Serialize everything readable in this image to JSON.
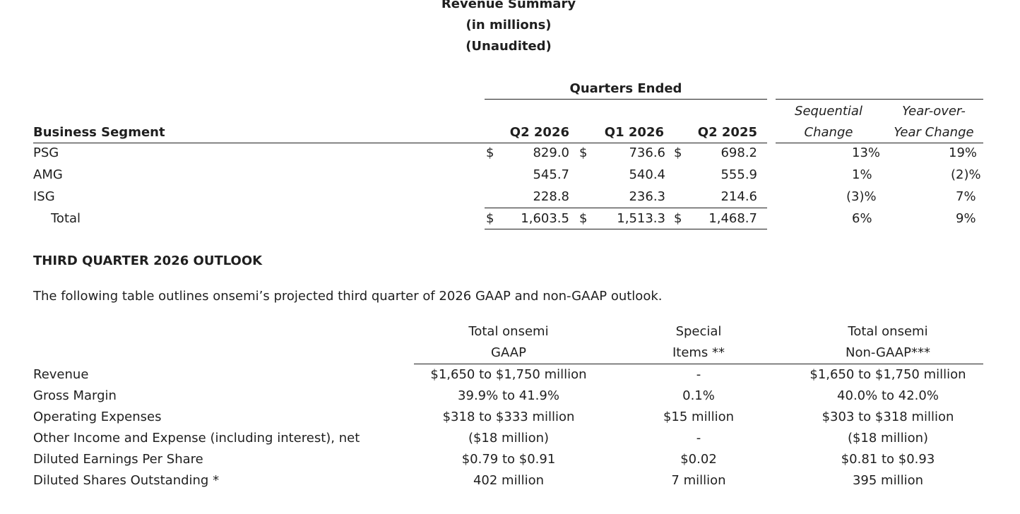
{
  "header": {
    "title": "Revenue Summary",
    "subtitle": "(in millions)",
    "audit": "(Unaudited)"
  },
  "revenue_table": {
    "group_header": "Quarters Ended",
    "segment_header": "Business Segment",
    "col_q2_2026": "Q2 2026",
    "col_q1_2026": "Q1 2026",
    "col_q2_2025": "Q2 2025",
    "seq_line1": "Sequential",
    "seq_line2": "Change",
    "yoy_line1": "Year-over-",
    "yoy_line2": "Year Change",
    "currency": "$",
    "rows": [
      {
        "segment": "PSG",
        "q2_2026": "829.0",
        "q1_2026": "736.6",
        "q2_2025": "698.2",
        "seq": "13%",
        "yoy": "19%"
      },
      {
        "segment": "AMG",
        "q2_2026": "545.7",
        "q1_2026": "540.4",
        "q2_2025": "555.9",
        "seq": "1%",
        "yoy": "(2)%"
      },
      {
        "segment": "ISG",
        "q2_2026": "228.8",
        "q1_2026": "236.3",
        "q2_2025": "214.6",
        "seq": "(3)%",
        "yoy": "7%"
      },
      {
        "segment": "Total",
        "q2_2026": "1,603.5",
        "q1_2026": "1,513.3",
        "q2_2025": "1,468.7",
        "seq": "6%",
        "yoy": "9%"
      }
    ]
  },
  "outlook": {
    "heading": "THIRD QUARTER 2026 OUTLOOK",
    "intro": "The following table outlines onsemi’s projected third quarter of 2026 GAAP and non-GAAP outlook.",
    "gaap_line1": "Total onsemi",
    "gaap_line2": "GAAP",
    "special_line1": "Special",
    "special_line2": "Items **",
    "nongaap_line1": "Total onsemi",
    "nongaap_line2": "Non-GAAP***",
    "rows": [
      {
        "label": "Revenue",
        "gaap": "$1,650 to $1,750 million",
        "special": "-",
        "nongaap": "$1,650 to $1,750 million"
      },
      {
        "label": "Gross Margin",
        "gaap": "39.9% to 41.9%",
        "special": "0.1%",
        "nongaap": "40.0% to 42.0%"
      },
      {
        "label": "Operating Expenses",
        "gaap": "$318 to $333 million",
        "special": "$15 million",
        "nongaap": "$303 to $318 million"
      },
      {
        "label": "Other Income and Expense (including interest), net",
        "gaap": "($18 million)",
        "special": "-",
        "nongaap": "($18 million)"
      },
      {
        "label": "Diluted Earnings Per Share",
        "gaap": "$0.79 to $0.91",
        "special": "$0.02",
        "nongaap": "$0.81 to $0.93"
      },
      {
        "label": "Diluted Shares Outstanding *",
        "gaap": "402 million",
        "special": "7 million",
        "nongaap": "395 million"
      }
    ]
  }
}
